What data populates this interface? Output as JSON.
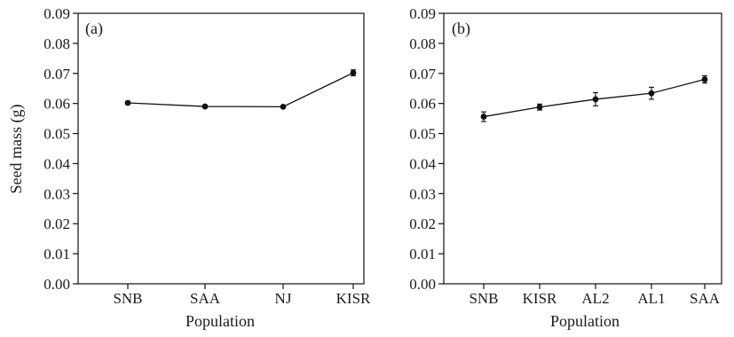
{
  "figure": {
    "ylabel": "Seed mass (g)"
  },
  "chart_data": [
    {
      "type": "line",
      "panel_label": "(a)",
      "xlabel": "Population",
      "ylabel": "Seed mass (g)",
      "categories": [
        "SNB",
        "SAA",
        "NJ",
        "KISR"
      ],
      "series": [
        {
          "values": [
            0.0602,
            0.059,
            0.0589,
            0.0702
          ],
          "error": [
            0.0005,
            0.0003,
            0.0003,
            0.001
          ]
        }
      ],
      "ylim": [
        0,
        0.09
      ],
      "yticks": [
        "0.00",
        "0.01",
        "0.02",
        "0.03",
        "0.04",
        "0.05",
        "0.06",
        "0.07",
        "0.08",
        "0.09"
      ],
      "grid": false,
      "error_bars": true,
      "color": "#111111"
    },
    {
      "type": "line",
      "panel_label": "(b)",
      "xlabel": "Population",
      "categories": [
        "SNB",
        "KISR",
        "AL2",
        "AL1",
        "SAA"
      ],
      "series": [
        {
          "values": [
            0.0556,
            0.0588,
            0.0614,
            0.0634,
            0.068
          ],
          "error": [
            0.0016,
            0.001,
            0.0022,
            0.002,
            0.0012
          ]
        }
      ],
      "ylim": [
        0,
        0.09
      ],
      "yticks": [
        "0.00",
        "0.01",
        "0.02",
        "0.03",
        "0.04",
        "0.05",
        "0.06",
        "0.07",
        "0.08",
        "0.09"
      ],
      "grid": false,
      "error_bars": true,
      "color": "#111111"
    }
  ]
}
